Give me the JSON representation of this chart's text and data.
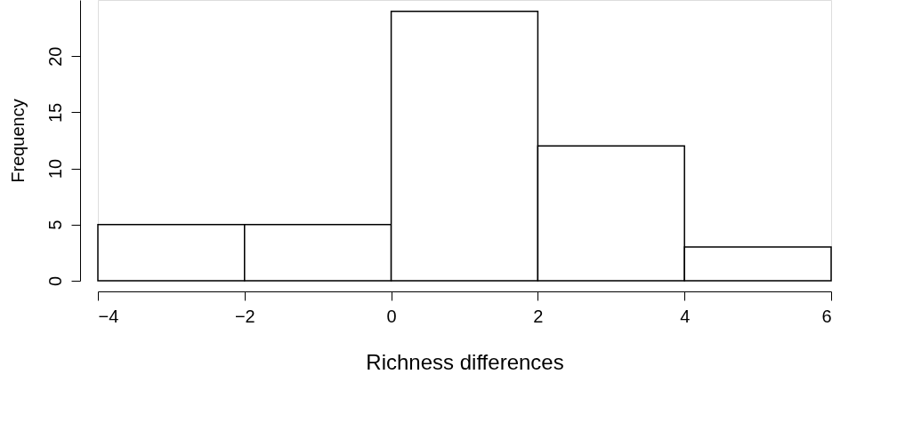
{
  "chart_data": {
    "type": "histogram",
    "xlabel": "Richness differences",
    "ylabel": "Frequency",
    "bins": [
      -4,
      -2,
      0,
      2,
      4,
      6
    ],
    "values": [
      5,
      5,
      24,
      12,
      3
    ],
    "color": "#ffffff",
    "xlim": [
      -4,
      6
    ],
    "ylim": [
      0,
      25
    ],
    "xticks": [
      -4,
      -2,
      0,
      2,
      4,
      6
    ],
    "yticks": [
      0,
      5,
      10,
      15,
      20
    ],
    "grid": false
  }
}
